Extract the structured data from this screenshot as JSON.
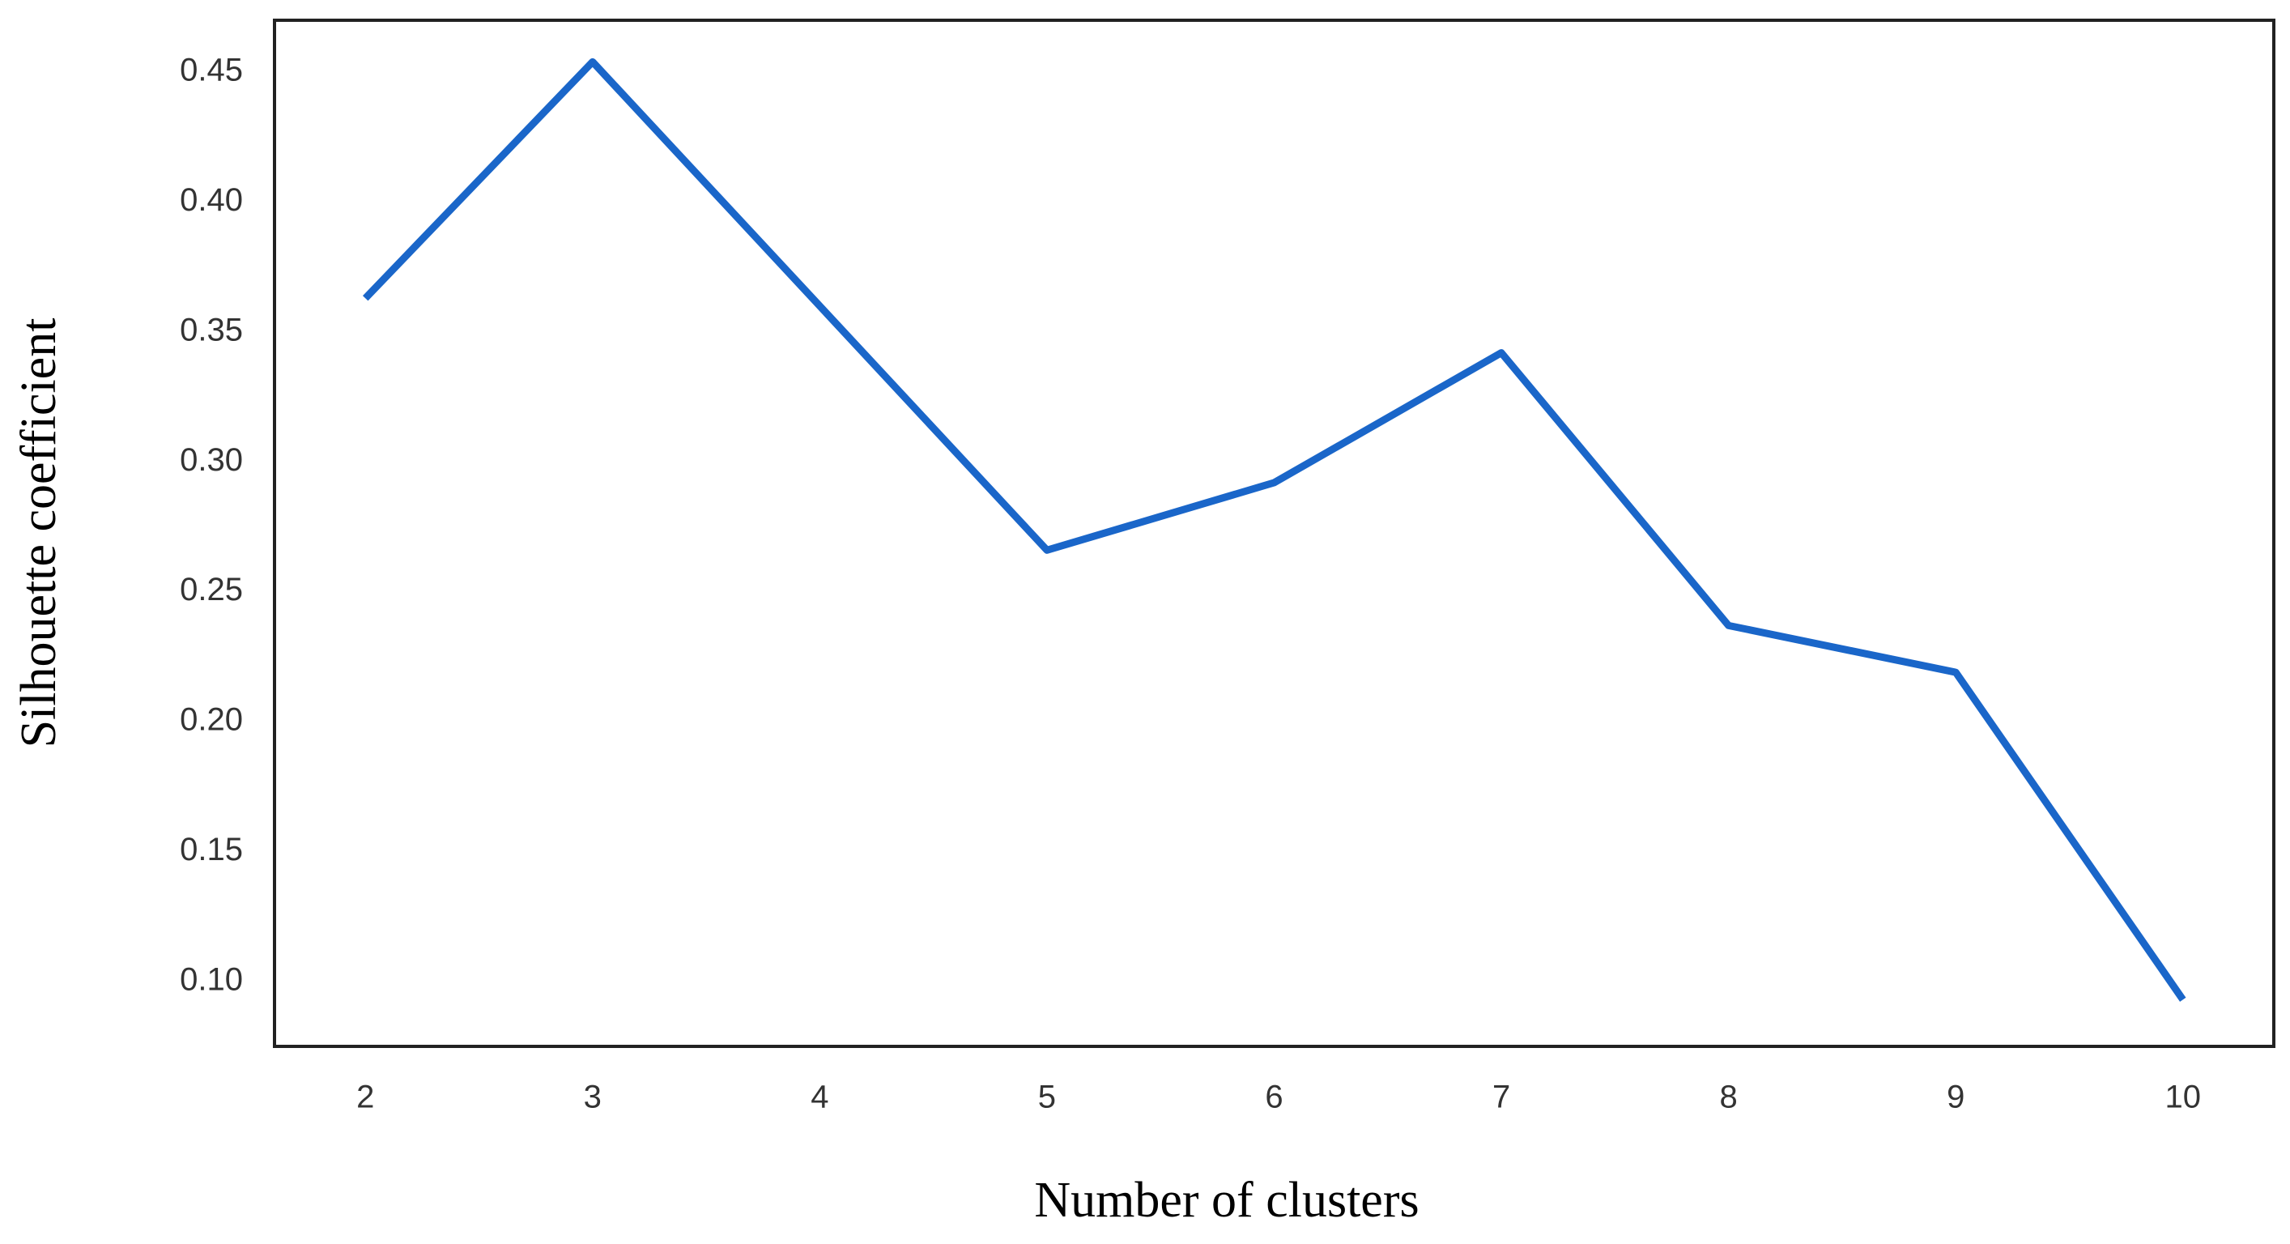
{
  "chart_data": {
    "type": "line",
    "x_label": "Number of clusters",
    "y_label": "Silhouette coefficient",
    "x": [
      2,
      3,
      4,
      5,
      6,
      7,
      8,
      9,
      10
    ],
    "series": [
      {
        "name": "Silhouette",
        "color": "#1a66c9",
        "values": [
          0.363,
          0.454,
          0.36,
          0.266,
          0.292,
          0.342,
          0.237,
          0.219,
          0.093
        ]
      }
    ],
    "xlim": [
      1.6,
      10.4
    ],
    "xticks": [
      2,
      3,
      4,
      5,
      6,
      7,
      8,
      9,
      10
    ],
    "ylim": [
      0.075,
      0.47
    ],
    "yticks": [
      {
        "value": 0.1,
        "label": "0.10"
      },
      0.15,
      {
        "value": 0.2,
        "label": "0.20"
      },
      0.25,
      {
        "value": 0.3,
        "label": "0.30"
      },
      0.35,
      {
        "value": 0.4,
        "label": "0.40"
      },
      0.45
    ]
  }
}
